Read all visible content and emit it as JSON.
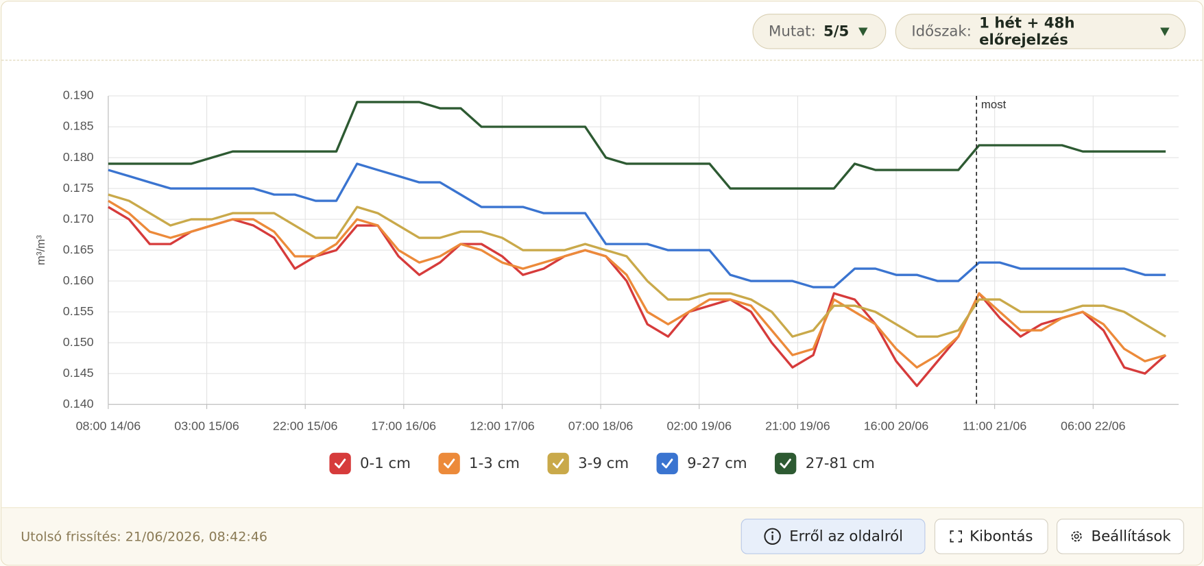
{
  "controls": {
    "show_label": "Mutat:",
    "show_value": "5/5",
    "period_label": "Időszak:",
    "period_value": "1 hét + 48h előrejelzés"
  },
  "chart_data": {
    "type": "line",
    "y_label": "m³/m³",
    "now": {
      "label": "most",
      "x": "07:30 21/06"
    },
    "xlim": [
      "08:00 14/06",
      "22:30 22/06"
    ],
    "xticks": [
      "08:00 14/06",
      "03:00 15/06",
      "22:00 15/06",
      "17:00 16/06",
      "12:00 17/06",
      "07:00 18/06",
      "02:00 19/06",
      "21:00 19/06",
      "16:00 20/06",
      "11:00 21/06",
      "06:00 22/06"
    ],
    "ylim": [
      0.14,
      0.19
    ],
    "yticks": [
      {
        "value": 0.14,
        "label": "0.140"
      },
      0.145,
      {
        "value": 0.15,
        "label": "0.150"
      },
      0.155,
      {
        "value": 0.16,
        "label": "0.160"
      },
      0.165,
      {
        "value": 0.17,
        "label": "0.170"
      },
      0.175,
      {
        "value": 0.18,
        "label": "0.180"
      },
      0.185,
      {
        "value": 0.19,
        "label": "0.190"
      }
    ],
    "grid": true,
    "x": [
      "08:00 14/06",
      "12:00 14/06",
      "16:00 14/06",
      "20:00 14/06",
      "00:00 15/06",
      "04:00 15/06",
      "08:00 15/06",
      "12:00 15/06",
      "16:00 15/06",
      "20:00 15/06",
      "00:00 16/06",
      "04:00 16/06",
      "08:00 16/06",
      "12:00 16/06",
      "16:00 16/06",
      "20:00 16/06",
      "00:00 17/06",
      "04:00 17/06",
      "08:00 17/06",
      "12:00 17/06",
      "16:00 17/06",
      "20:00 17/06",
      "00:00 18/06",
      "04:00 18/06",
      "08:00 18/06",
      "12:00 18/06",
      "16:00 18/06",
      "20:00 18/06",
      "00:00 19/06",
      "04:00 19/06",
      "08:00 19/06",
      "12:00 19/06",
      "16:00 19/06",
      "20:00 19/06",
      "00:00 20/06",
      "04:00 20/06",
      "08:00 20/06",
      "12:00 20/06",
      "16:00 20/06",
      "20:00 20/06",
      "00:00 21/06",
      "04:00 21/06",
      "08:00 21/06",
      "12:00 21/06",
      "16:00 21/06",
      "20:00 21/06",
      "00:00 22/06",
      "04:00 22/06",
      "08:00 22/06",
      "12:00 22/06",
      "16:00 22/06",
      "20:00 22/06"
    ],
    "series": [
      {
        "name": "0-1 cm",
        "color": "#d63b3b",
        "values": [
          0.172,
          0.17,
          0.166,
          0.166,
          0.168,
          0.169,
          0.17,
          0.169,
          0.167,
          0.162,
          0.164,
          0.165,
          0.169,
          0.169,
          0.164,
          0.161,
          0.163,
          0.166,
          0.166,
          0.164,
          0.161,
          0.162,
          0.164,
          0.165,
          0.164,
          0.16,
          0.153,
          0.151,
          0.155,
          0.156,
          0.157,
          0.155,
          0.15,
          0.146,
          0.148,
          0.158,
          0.157,
          0.153,
          0.147,
          0.143,
          0.147,
          0.151,
          0.158,
          0.154,
          0.151,
          0.153,
          0.154,
          0.155,
          0.152,
          0.146,
          0.145,
          0.148
        ]
      },
      {
        "name": "1-3 cm",
        "color": "#ec8a3a",
        "values": [
          0.173,
          0.171,
          0.168,
          0.167,
          0.168,
          0.169,
          0.17,
          0.17,
          0.168,
          0.164,
          0.164,
          0.166,
          0.17,
          0.169,
          0.165,
          0.163,
          0.164,
          0.166,
          0.165,
          0.163,
          0.162,
          0.163,
          0.164,
          0.165,
          0.164,
          0.161,
          0.155,
          0.153,
          0.155,
          0.157,
          0.157,
          0.156,
          0.152,
          0.148,
          0.149,
          0.157,
          0.155,
          0.153,
          0.149,
          0.146,
          0.148,
          0.151,
          0.158,
          0.155,
          0.152,
          0.152,
          0.154,
          0.155,
          0.153,
          0.149,
          0.147,
          0.148
        ]
      },
      {
        "name": "3-9 cm",
        "color": "#c9a94a",
        "values": [
          0.174,
          0.173,
          0.171,
          0.169,
          0.17,
          0.17,
          0.171,
          0.171,
          0.171,
          0.169,
          0.167,
          0.167,
          0.172,
          0.171,
          0.169,
          0.167,
          0.167,
          0.168,
          0.168,
          0.167,
          0.165,
          0.165,
          0.165,
          0.166,
          0.165,
          0.164,
          0.16,
          0.157,
          0.157,
          0.158,
          0.158,
          0.157,
          0.155,
          0.151,
          0.152,
          0.156,
          0.156,
          0.155,
          0.153,
          0.151,
          0.151,
          0.152,
          0.157,
          0.157,
          0.155,
          0.155,
          0.155,
          0.156,
          0.156,
          0.155,
          0.153,
          0.151
        ]
      },
      {
        "name": "9-27 cm",
        "color": "#3a74d0",
        "values": [
          0.178,
          0.177,
          0.176,
          0.175,
          0.175,
          0.175,
          0.175,
          0.175,
          0.174,
          0.174,
          0.173,
          0.173,
          0.179,
          0.178,
          0.177,
          0.176,
          0.176,
          0.174,
          0.172,
          0.172,
          0.172,
          0.171,
          0.171,
          0.171,
          0.166,
          0.166,
          0.166,
          0.165,
          0.165,
          0.165,
          0.161,
          0.16,
          0.16,
          0.16,
          0.159,
          0.159,
          0.162,
          0.162,
          0.161,
          0.161,
          0.16,
          0.16,
          0.163,
          0.163,
          0.162,
          0.162,
          0.162,
          0.162,
          0.162,
          0.162,
          0.161,
          0.161
        ]
      },
      {
        "name": "27-81 cm",
        "color": "#2d5a32",
        "values": [
          0.179,
          0.179,
          0.179,
          0.179,
          0.179,
          0.18,
          0.181,
          0.181,
          0.181,
          0.181,
          0.181,
          0.181,
          0.189,
          0.189,
          0.189,
          0.189,
          0.188,
          0.188,
          0.185,
          0.185,
          0.185,
          0.185,
          0.185,
          0.185,
          0.18,
          0.179,
          0.179,
          0.179,
          0.179,
          0.179,
          0.175,
          0.175,
          0.175,
          0.175,
          0.175,
          0.175,
          0.179,
          0.178,
          0.178,
          0.178,
          0.178,
          0.178,
          0.182,
          0.182,
          0.182,
          0.182,
          0.182,
          0.181,
          0.181,
          0.181,
          0.181,
          0.181
        ]
      }
    ]
  },
  "footer": {
    "last_update": "Utolsó frissítés: 21/06/2026, 08:42:46",
    "buttons": [
      "Erről az oldalról",
      "Kibontás",
      "Beállítások"
    ]
  }
}
